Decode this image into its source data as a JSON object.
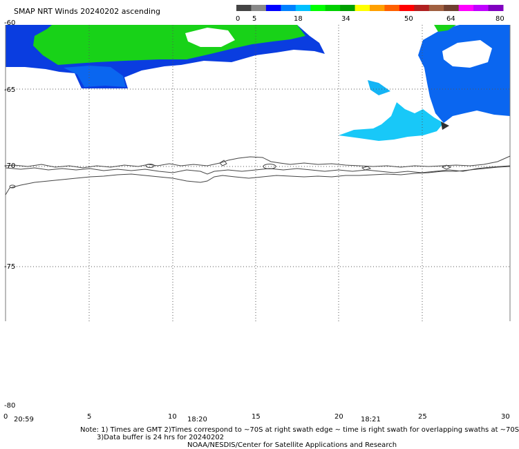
{
  "title": "SMAP NRT Winds 20240202 ascending",
  "colorbar": {
    "labels": [
      "0",
      "5",
      "18",
      "34",
      "50",
      "64",
      "80"
    ],
    "segments": [
      "#444444",
      "#888888",
      "#0000ff",
      "#0080ff",
      "#00c0ff",
      "#00ff00",
      "#00d000",
      "#00a000",
      "#ffff00",
      "#ffa000",
      "#ff6000",
      "#ff0000",
      "#b02020",
      "#a06040",
      "#704030",
      "#ff00ff",
      "#c000ff",
      "#8000c0"
    ]
  },
  "lat_labels": [
    "-60",
    "-65",
    "-70",
    "-75",
    "-80"
  ],
  "lon_labels": [
    "0",
    "5",
    "10",
    "15",
    "20",
    "25",
    "30"
  ],
  "time_labels": [
    "20:59",
    "18:20",
    "18:21"
  ],
  "colors": {
    "blue": "#0a3de0",
    "mid_blue": "#0a66f0",
    "light_blue": "#14b4f5",
    "cyan": "#18c8f8",
    "green": "#18d218",
    "dark": "#303030"
  },
  "notes": {
    "line1": "Note: 1) Times are GMT 2)Times correspond to ~70S at right swath edge ~ time is right swath for overlapping swaths at ~70S",
    "line2": "3)Data buffer is 24 hrs for 20240202",
    "line3": "NOAA/NESDIS/Center for Satellite Applications and Research"
  }
}
